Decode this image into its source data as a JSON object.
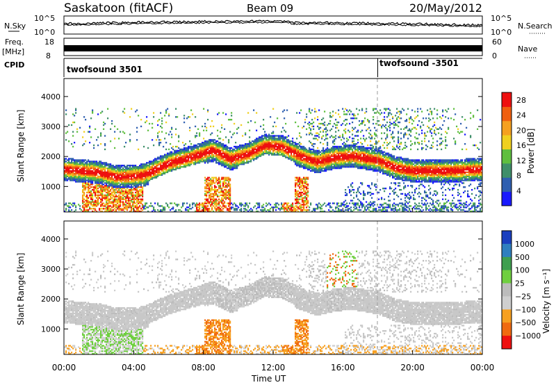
{
  "header": {
    "station": "Saskatoon (fitACF)",
    "beam": "Beam 09",
    "date": "20/May/2012"
  },
  "status_panels": {
    "nsky_label": "N.Sky",
    "nsearch_label": "N.Search",
    "noise_ticks": [
      "10^5",
      "10^0"
    ],
    "freq_label_1": "Freq.",
    "freq_label_2": "[MHz]",
    "freq_ticks": [
      "18",
      "8"
    ],
    "nave_label": "Nave",
    "nave_ticks": [
      "60",
      "0"
    ],
    "cpid_label": "CPID",
    "cpid_segments": [
      {
        "name": "twofsound 3501",
        "start_hour": 0
      },
      {
        "name": "twofsound -3501",
        "start_hour": 18
      }
    ]
  },
  "colors": {
    "power_scale": [
      "#1a1aff",
      "#2f5fb0",
      "#3f8f6a",
      "#5fbf3f",
      "#f0d020",
      "#f5a020",
      "#f06010",
      "#ee1010"
    ],
    "velocity_scale": [
      "#1a3fbf",
      "#2f7fbf",
      "#3f9f4f",
      "#6fcf3f",
      "#bcbcbc",
      "#cfcfcf",
      "#f7a020",
      "#f06a10",
      "#ee1010"
    ],
    "ground_scatter": "#c8c8c8"
  },
  "chart_data": [
    {
      "type": "heatmap",
      "panel": "power",
      "ylabel": "Slant Range [km]",
      "xlabel": "Time UT",
      "xlim": [
        0,
        24
      ],
      "ylim": [
        150,
        4600
      ],
      "x_ticks": [
        "00:00",
        "04:00",
        "08:00",
        "12:00",
        "16:00",
        "20:00",
        "00:00"
      ],
      "y_ticks": [
        1000,
        2000,
        3000,
        4000
      ],
      "colorbar": {
        "label": "Power [dB]",
        "ticks": [
          4,
          8,
          12,
          16,
          20,
          24,
          28
        ],
        "range": [
          0,
          30
        ]
      }
    },
    {
      "type": "heatmap",
      "panel": "velocity",
      "ylabel": "Slant Range [km]",
      "xlabel": "Time UT",
      "xlim": [
        0,
        24
      ],
      "ylim": [
        150,
        4600
      ],
      "x_ticks": [
        "00:00",
        "04:00",
        "08:00",
        "12:00",
        "16:00",
        "20:00",
        "00:00"
      ],
      "y_ticks": [
        1000,
        2000,
        3000,
        4000
      ],
      "colorbar": {
        "label": "Velocity [m s⁻¹]",
        "ticks": [
          "1000",
          "500",
          "100",
          "25",
          "−25",
          "−100",
          "−500",
          "−1000"
        ]
      }
    }
  ]
}
